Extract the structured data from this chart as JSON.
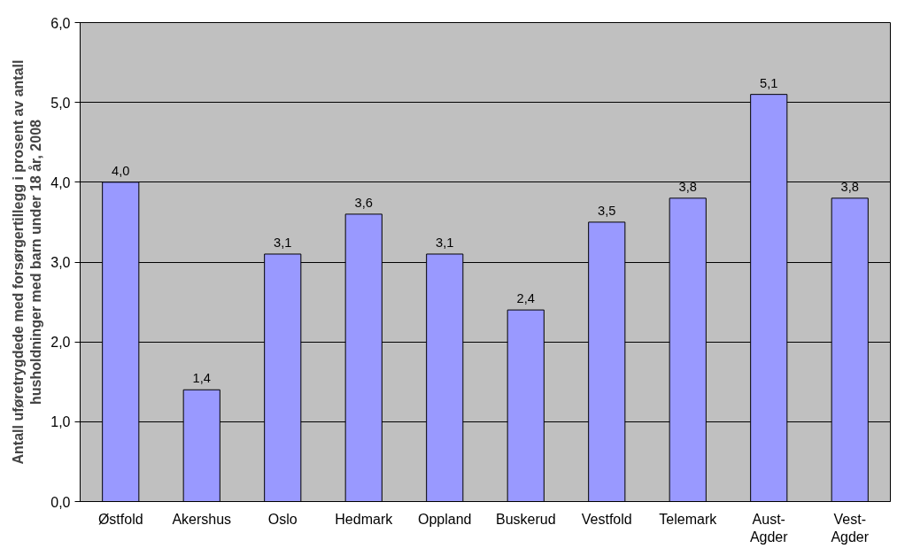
{
  "chart_data": {
    "type": "bar",
    "ylabel": "Antall uføretrygdede med forsørgertillegg i prosent av antall\nhusholdninger med barn under 18 år, 2008",
    "categories": [
      "Østfold",
      "Akershus",
      "Oslo",
      "Hedmark",
      "Oppland",
      "Buskerud",
      "Vestfold",
      "Telemark",
      "Aust-\nAgder",
      "Vest-\nAgder"
    ],
    "values": [
      4.0,
      1.4,
      3.1,
      3.6,
      3.1,
      2.4,
      3.5,
      3.8,
      5.1,
      3.8
    ],
    "value_labels": [
      "4,0",
      "1,4",
      "3,1",
      "3,6",
      "3,1",
      "2,4",
      "3,5",
      "3,8",
      "5,1",
      "3,8"
    ],
    "color": "#9999ff",
    "ylim": [
      0,
      6
    ],
    "yticks": [
      {
        "value": 0,
        "label": "0,0"
      },
      {
        "value": 1,
        "label": "1,0"
      },
      {
        "value": 2,
        "label": "2,0"
      },
      {
        "value": 3,
        "label": "3,0"
      },
      {
        "value": 4,
        "label": "4,0"
      },
      {
        "value": 5,
        "label": "5,0"
      },
      {
        "value": 6,
        "label": "6,0"
      }
    ],
    "grid": "y"
  }
}
